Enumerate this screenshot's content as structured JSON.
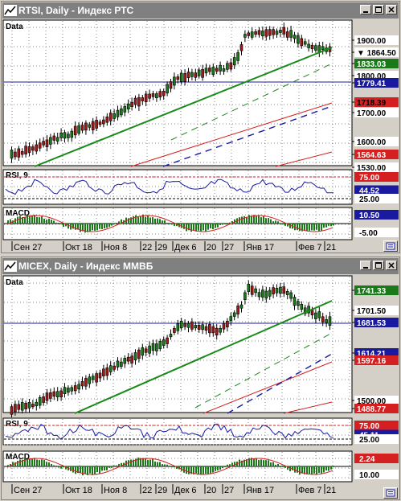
{
  "windows": [
    {
      "id": "rtsi",
      "title": "RTSI, Daily - Индекс РТС",
      "panel_label": "Data",
      "price_labels": [
        {
          "text": "1900.00",
          "bg": "#ffffff",
          "fg": "#000000"
        },
        {
          "text": "▼ 1864.50",
          "bg": "#ffffff",
          "fg": "#000000"
        },
        {
          "text": "1833.03",
          "bg": "#1a7a1a",
          "fg": "#ffffff"
        },
        {
          "text": "1800.00",
          "bg": "#ffffff",
          "fg": "#000000"
        },
        {
          "text": "1779.41",
          "bg": "#1a1aa0",
          "fg": "#ffffff"
        },
        {
          "text": "1718.39",
          "bg": "#d42020",
          "fg": "#000000"
        },
        {
          "text": "1700.00",
          "bg": "#ffffff",
          "fg": "#000000"
        },
        {
          "text": "1600.00",
          "bg": "#ffffff",
          "fg": "#000000"
        },
        {
          "text": "1564.63",
          "bg": "#d42020",
          "fg": "#ffffff"
        },
        {
          "text": "1530.00",
          "bg": "#ffffff",
          "fg": "#000000"
        }
      ],
      "rsi_label": "RSI, 9",
      "rsi_labels": [
        {
          "text": "75.00",
          "bg": "#d42020",
          "fg": "#ffffff"
        },
        {
          "text": "44.52",
          "bg": "#1a1aa0",
          "fg": "#ffffff"
        },
        {
          "text": "25.00",
          "bg": "#ffffff",
          "fg": "#000000"
        }
      ],
      "macd_label": "MACD",
      "macd_labels": [
        {
          "text": "10.50",
          "bg": "#1a1aa0",
          "fg": "#ffffff"
        },
        {
          "text": "-5.00",
          "bg": "#ffffff",
          "fg": "#000000"
        }
      ],
      "x_labels": [
        "Сен 27",
        "Окт 18",
        "Ноя 8",
        "22",
        "29",
        "Дек 6",
        "20",
        "27",
        "Янв 17",
        "Фев 7",
        "21"
      ]
    },
    {
      "id": "micex",
      "title": "MICEX, Daily - Индекс ММВБ",
      "panel_label": "Data",
      "price_labels": [
        {
          "text": "1741.33",
          "bg": "#1a7a1a",
          "fg": "#ffffff"
        },
        {
          "text": "1701.50",
          "bg": "#ffffff",
          "fg": "#000000"
        },
        {
          "text": "1681.53",
          "bg": "#1a1aa0",
          "fg": "#ffffff"
        },
        {
          "text": "1614.21",
          "bg": "#1a1aa0",
          "fg": "#ffffff"
        },
        {
          "text": "1597.16",
          "bg": "#d42020",
          "fg": "#ffffff"
        },
        {
          "text": "1500.00",
          "bg": "#ffffff",
          "fg": "#000000"
        },
        {
          "text": "1488.77",
          "bg": "#d42020",
          "fg": "#ffffff"
        }
      ],
      "rsi_label": "RSI, 9",
      "rsi_labels": [
        {
          "text": "75.00",
          "bg": "#d42020",
          "fg": "#ffffff"
        },
        {
          "text": "45.11",
          "bg": "#1a1aa0",
          "fg": "#ffffff"
        },
        {
          "text": "25.00",
          "bg": "#ffffff",
          "fg": "#000000"
        }
      ],
      "macd_label": "MACD",
      "macd_labels": [
        {
          "text": "2.24",
          "bg": "#d42020",
          "fg": "#ffffff"
        },
        {
          "text": "10.00",
          "bg": "#ffffff",
          "fg": "#000000"
        }
      ],
      "x_labels": [
        "Сен 27",
        "Окт 18",
        "Ноя 8",
        "22",
        "29",
        "Дек 6",
        "20",
        "27",
        "Янв 17",
        "Фев 7",
        "21"
      ]
    }
  ],
  "colors": {
    "titlebar": "#808080",
    "panel_bg": "#ffffff",
    "bull": "#1a7a1a",
    "bear": "#a01a1a",
    "trend": "#1a8a1a",
    "ma_red": "#d42020",
    "ma_blue": "#1a1aa0",
    "hline": "#1a1aa0"
  }
}
